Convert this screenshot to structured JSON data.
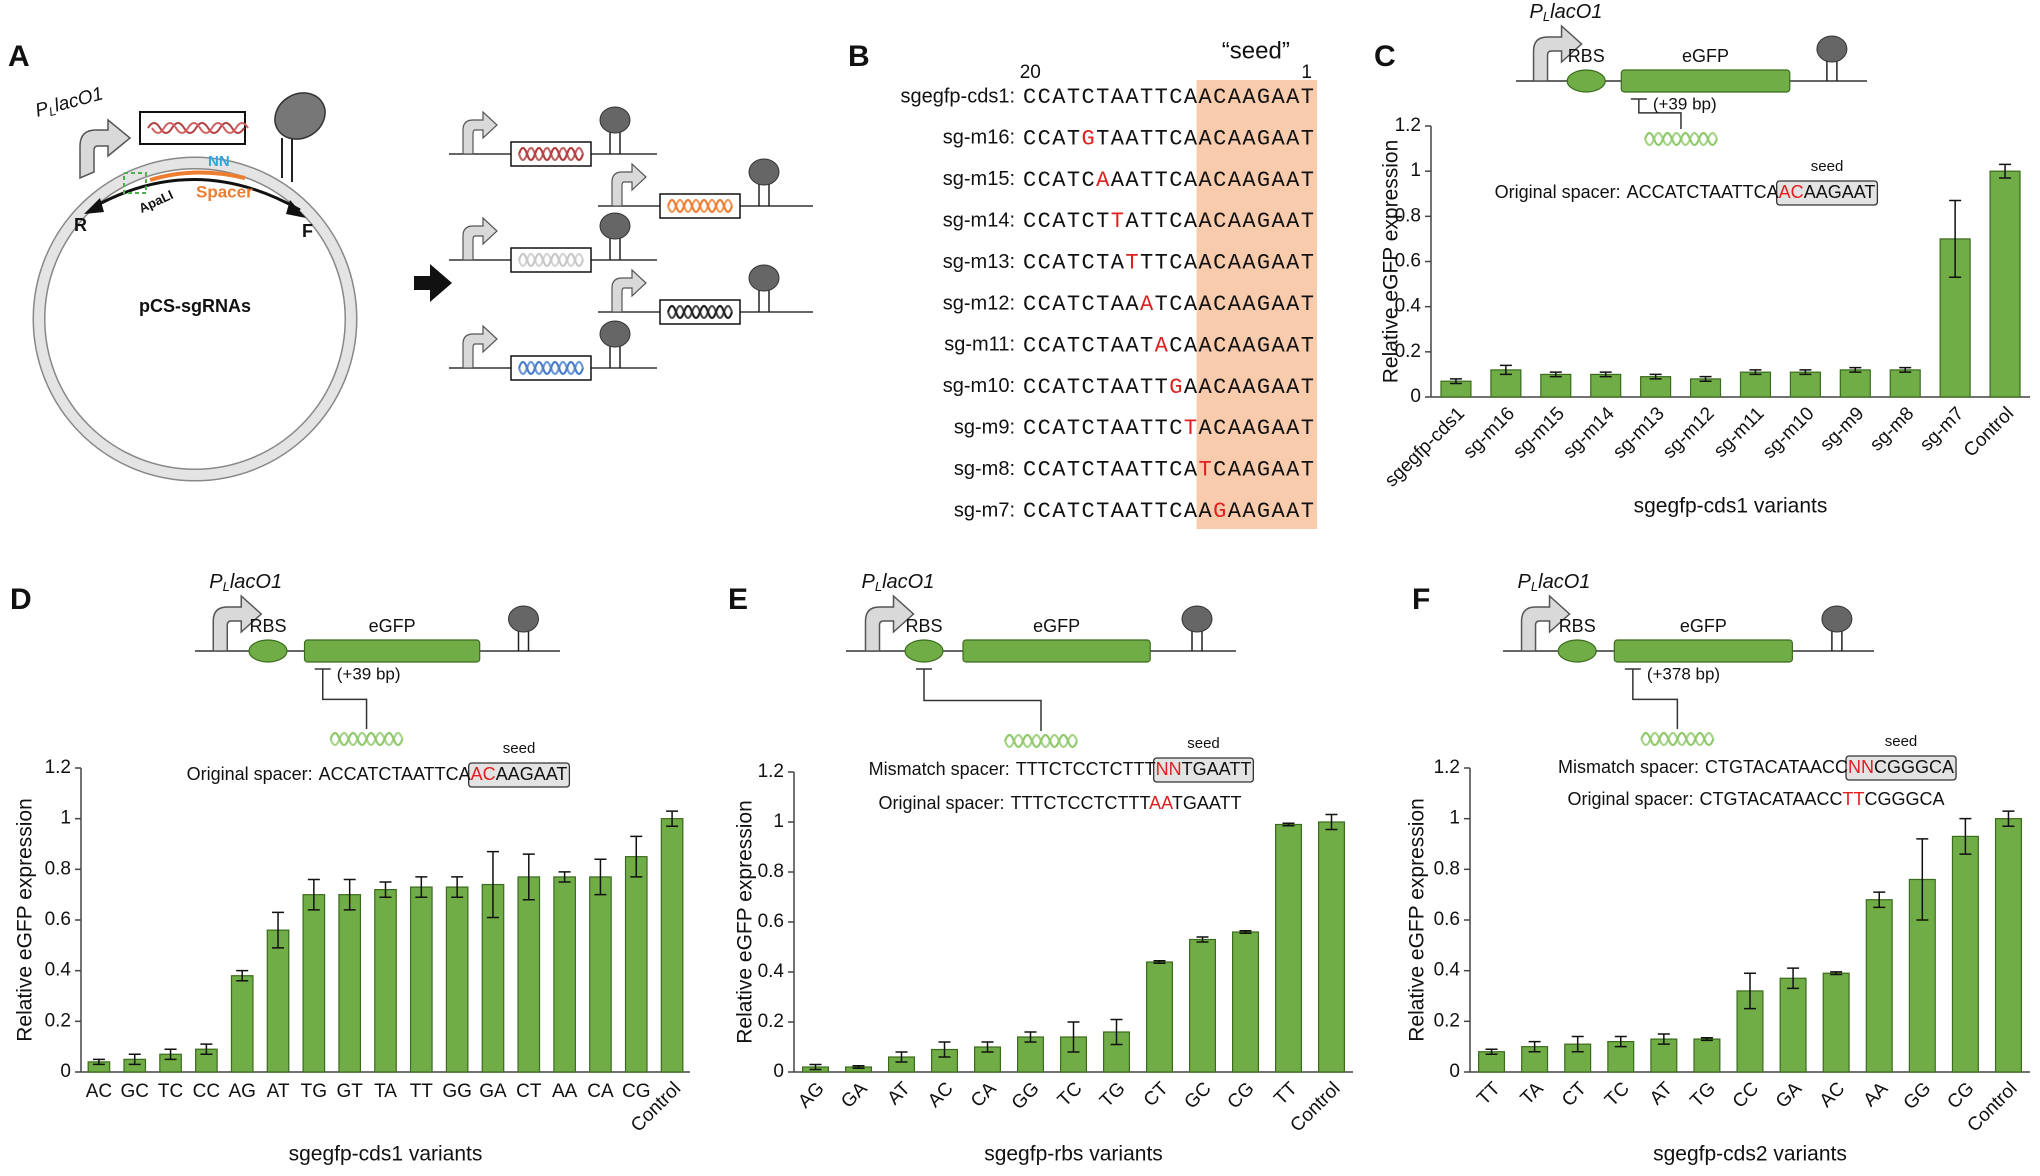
{
  "figure_a": {
    "label": "A",
    "promoter": {
      "main": "P",
      "sub": "L",
      "rest": "lacO1"
    },
    "nn": "NN",
    "spacer": "Spacer",
    "apali": "ApaLI",
    "primer_r": "R",
    "primer_f": "F",
    "plasmid": "pCS-sgRNAs"
  },
  "figure_b": {
    "label": "B",
    "seed": "“seed”",
    "pos_start": 20,
    "pos_end": 1,
    "rows": [
      {
        "name": "sgegfp-cds1:",
        "seq": "CCATCTAATTCAACAAGAAT"
      },
      {
        "name": "sg-m16:",
        "pre": "CCAT",
        "mut": "G",
        "post": "TAATTCAACAAGAAT"
      },
      {
        "name": "sg-m15:",
        "pre": "CCATC",
        "mut": "A",
        "post": "AATTCAACAAGAAT"
      },
      {
        "name": "sg-m14:",
        "pre": "CCATCT",
        "mut": "T",
        "post": "ATTCAACAAGAAT"
      },
      {
        "name": "sg-m13:",
        "pre": "CCATCTA",
        "mut": "T",
        "post": "TTCAACAAGAAT"
      },
      {
        "name": "sg-m12:",
        "pre": "CCATCTAA",
        "mut": "A",
        "post": "TCAACAAGAAT"
      },
      {
        "name": "sg-m11:",
        "pre": "CCATCTAAT",
        "mut": "A",
        "post": "CAACAAGAAT"
      },
      {
        "name": "sg-m10:",
        "pre": "CCATCTAATT",
        "mut": "G",
        "post": "AACAAGAAT"
      },
      {
        "name": "sg-m9:",
        "pre": "CCATCTAATTC",
        "mut": "T",
        "post": "ACAAGAAT"
      },
      {
        "name": "sg-m8:",
        "pre": "CCATCTAATTCA",
        "mut": "T",
        "post": "CAAGAAT"
      },
      {
        "name": "sg-m7:",
        "pre": "CCATCTAATTCAA",
        "mut": "G",
        "post": "AAGAAT"
      }
    ]
  },
  "chart_data": [
    {
      "panel": "C",
      "type": "bar",
      "color": "#70ad47",
      "categories": [
        "sgegfp-cds1",
        "sg-m16",
        "sg-m15",
        "sg-m14",
        "sg-m13",
        "sg-m12",
        "sg-m11",
        "sg-m10",
        "sg-m9",
        "sg-m8",
        "sg-m7",
        "Control"
      ],
      "values": [
        0.07,
        0.12,
        0.1,
        0.1,
        0.09,
        0.08,
        0.11,
        0.11,
        0.12,
        0.12,
        0.7,
        1.0
      ],
      "errors": [
        0.01,
        0.02,
        0.01,
        0.01,
        0.01,
        0.01,
        0.01,
        0.01,
        0.01,
        0.01,
        0.17,
        0.03
      ],
      "ylim": [
        0,
        1.2
      ],
      "yticks": [
        0,
        0.2,
        0.4,
        0.6,
        0.8,
        1,
        1.2
      ],
      "y_label": "Relative eGFP expression",
      "x_label": "sgegfp-cds1 variants",
      "construct": {
        "promoter": {
          "main": "P",
          "sub": "L",
          "rest": "lacO1"
        },
        "rbs": "RBS",
        "gene": "eGFP",
        "offset": "(+39 bp)"
      },
      "spacers": [
        {
          "label": "Original spacer:",
          "pre": "ACCATCTAATTCA",
          "highlight": "AC",
          "post": "AAGAAT",
          "boxed": true
        }
      ],
      "seed_label": "seed"
    },
    {
      "panel": "D",
      "type": "bar",
      "color": "#70ad47",
      "categories": [
        "AC",
        "GC",
        "TC",
        "CC",
        "AG",
        "AT",
        "TG",
        "GT",
        "TA",
        "TT",
        "GG",
        "GA",
        "CT",
        "AA",
        "CA",
        "CG",
        "Control"
      ],
      "values": [
        0.04,
        0.05,
        0.07,
        0.09,
        0.38,
        0.56,
        0.7,
        0.7,
        0.72,
        0.73,
        0.73,
        0.74,
        0.77,
        0.77,
        0.77,
        0.85,
        1.0
      ],
      "errors": [
        0.01,
        0.02,
        0.02,
        0.02,
        0.02,
        0.07,
        0.06,
        0.06,
        0.03,
        0.04,
        0.04,
        0.13,
        0.09,
        0.02,
        0.07,
        0.08,
        0.03
      ],
      "ylim": [
        0,
        1.2
      ],
      "yticks": [
        0,
        0.2,
        0.4,
        0.6,
        0.8,
        1,
        1.2
      ],
      "y_label": "Relative eGFP expression",
      "x_label": "sgegfp-cds1 variants",
      "construct": {
        "promoter": {
          "main": "P",
          "sub": "L",
          "rest": "lacO1"
        },
        "rbs": "RBS",
        "gene": "eGFP",
        "offset": "(+39 bp)"
      },
      "spacers": [
        {
          "label": "Original spacer:",
          "pre": "ACCATCTAATTCA",
          "highlight": "AC",
          "post": "AAGAAT",
          "boxed": true
        }
      ],
      "seed_label": "seed"
    },
    {
      "panel": "E",
      "type": "bar",
      "color": "#70ad47",
      "categories": [
        "AG",
        "GA",
        "AT",
        "AC",
        "CA",
        "GG",
        "TC",
        "TG",
        "CT",
        "GC",
        "CG",
        "TT",
        "Control"
      ],
      "values": [
        0.02,
        0.02,
        0.06,
        0.09,
        0.1,
        0.14,
        0.14,
        0.16,
        0.44,
        0.53,
        0.56,
        0.99,
        1.0
      ],
      "errors": [
        0.01,
        0.005,
        0.02,
        0.03,
        0.02,
        0.02,
        0.06,
        0.05,
        0.005,
        0.01,
        0.005,
        0.005,
        0.03
      ],
      "ylim": [
        0,
        1.2
      ],
      "yticks": [
        0,
        0.2,
        0.4,
        0.6,
        0.8,
        1,
        1.2
      ],
      "y_label": "Relative eGFP expression",
      "x_label": "sgegfp-rbs variants",
      "construct": {
        "promoter": {
          "main": "P",
          "sub": "L",
          "rest": "lacO1"
        },
        "rbs": "RBS",
        "gene": "eGFP"
      },
      "spacers": [
        {
          "label": "Mismatch spacer:",
          "pre": "TTTCTCCTCTTT",
          "highlight": "NN",
          "post": "TGAATT",
          "boxed": true
        },
        {
          "label": "Original spacer:",
          "pre": "TTTCTCCTCTTT",
          "highlight": "AA",
          "post": "TGAATT",
          "boxed": false
        }
      ],
      "seed_label": "seed"
    },
    {
      "panel": "F",
      "type": "bar",
      "color": "#70ad47",
      "categories": [
        "TT",
        "TA",
        "CT",
        "TC",
        "AT",
        "TG",
        "CC",
        "GA",
        "AC",
        "AA",
        "GG",
        "CG",
        "Control"
      ],
      "values": [
        0.08,
        0.1,
        0.11,
        0.12,
        0.13,
        0.13,
        0.32,
        0.37,
        0.39,
        0.68,
        0.76,
        0.93,
        1.0
      ],
      "errors": [
        0.01,
        0.02,
        0.03,
        0.02,
        0.02,
        0.005,
        0.07,
        0.04,
        0.005,
        0.03,
        0.16,
        0.07,
        0.03
      ],
      "ylim": [
        0,
        1.2
      ],
      "yticks": [
        0,
        0.2,
        0.4,
        0.6,
        0.8,
        1,
        1.2
      ],
      "y_label": "Relative eGFP expression",
      "x_label": "sgegfp-cds2 variants",
      "construct": {
        "promoter": {
          "main": "P",
          "sub": "L",
          "rest": "lacO1"
        },
        "rbs": "RBS",
        "gene": "eGFP",
        "offset": "(+378 bp)"
      },
      "spacers": [
        {
          "label": "Mismatch spacer:",
          "pre": "CTGTACATAACC",
          "highlight": "NN",
          "post": "CGGGCA",
          "boxed": true
        },
        {
          "label": "Original spacer:",
          "pre": "CTGTACATAACC",
          "highlight": "TT",
          "post": "CGGGCA",
          "boxed": false
        }
      ],
      "seed_label": "seed"
    }
  ]
}
